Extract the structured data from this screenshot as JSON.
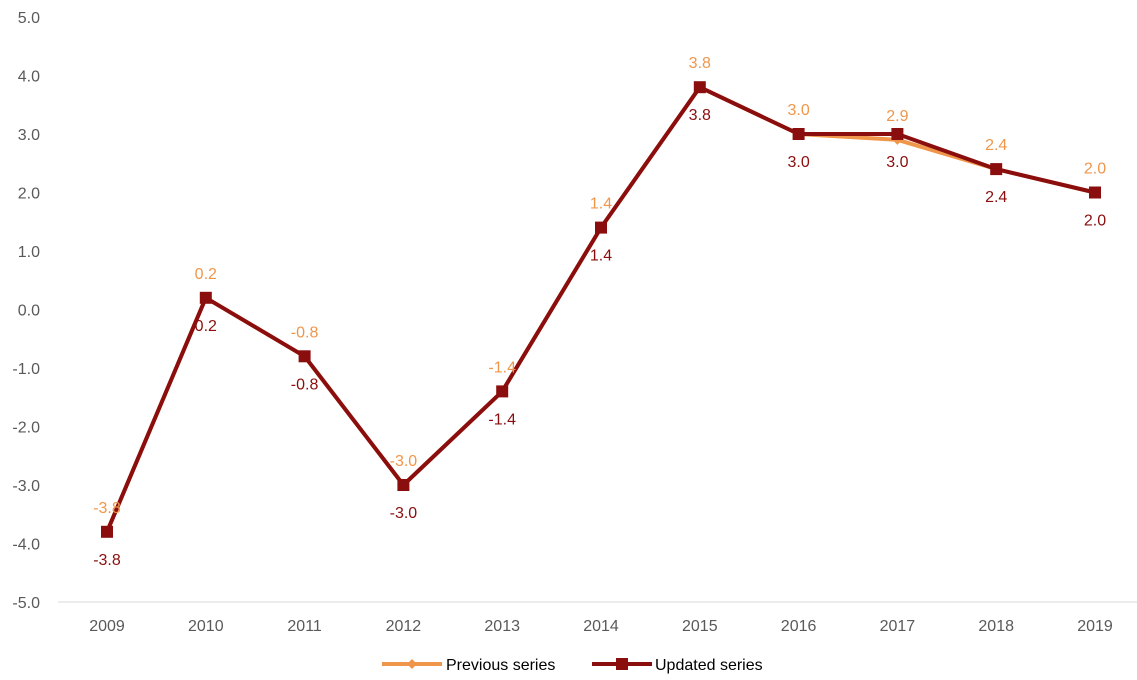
{
  "chart_data": {
    "type": "line",
    "categories": [
      "2009",
      "2010",
      "2011",
      "2012",
      "2013",
      "2014",
      "2015",
      "2016",
      "2017",
      "2018",
      "2019"
    ],
    "series": [
      {
        "name": "Previous series",
        "color": "#F0964B",
        "marker": "diamond",
        "values": [
          -3.8,
          0.2,
          -0.8,
          -3.0,
          -1.4,
          1.4,
          3.8,
          3.0,
          2.9,
          2.4,
          2.0
        ],
        "label_position": "above"
      },
      {
        "name": "Updated series",
        "color": "#8B0E0E",
        "marker": "square",
        "values": [
          -3.8,
          0.2,
          -0.8,
          -3.0,
          -1.4,
          1.4,
          3.8,
          3.0,
          3.0,
          2.4,
          2.0
        ],
        "label_position": "below"
      }
    ],
    "ylim": [
      -5.0,
      5.0
    ],
    "y_ticks": [
      "5.0",
      "4.0",
      "3.0",
      "2.0",
      "1.0",
      "0.0",
      "-1.0",
      "-2.0",
      "-3.0",
      "-4.0",
      "-5.0"
    ],
    "grid": false,
    "legend_position": "bottom"
  }
}
